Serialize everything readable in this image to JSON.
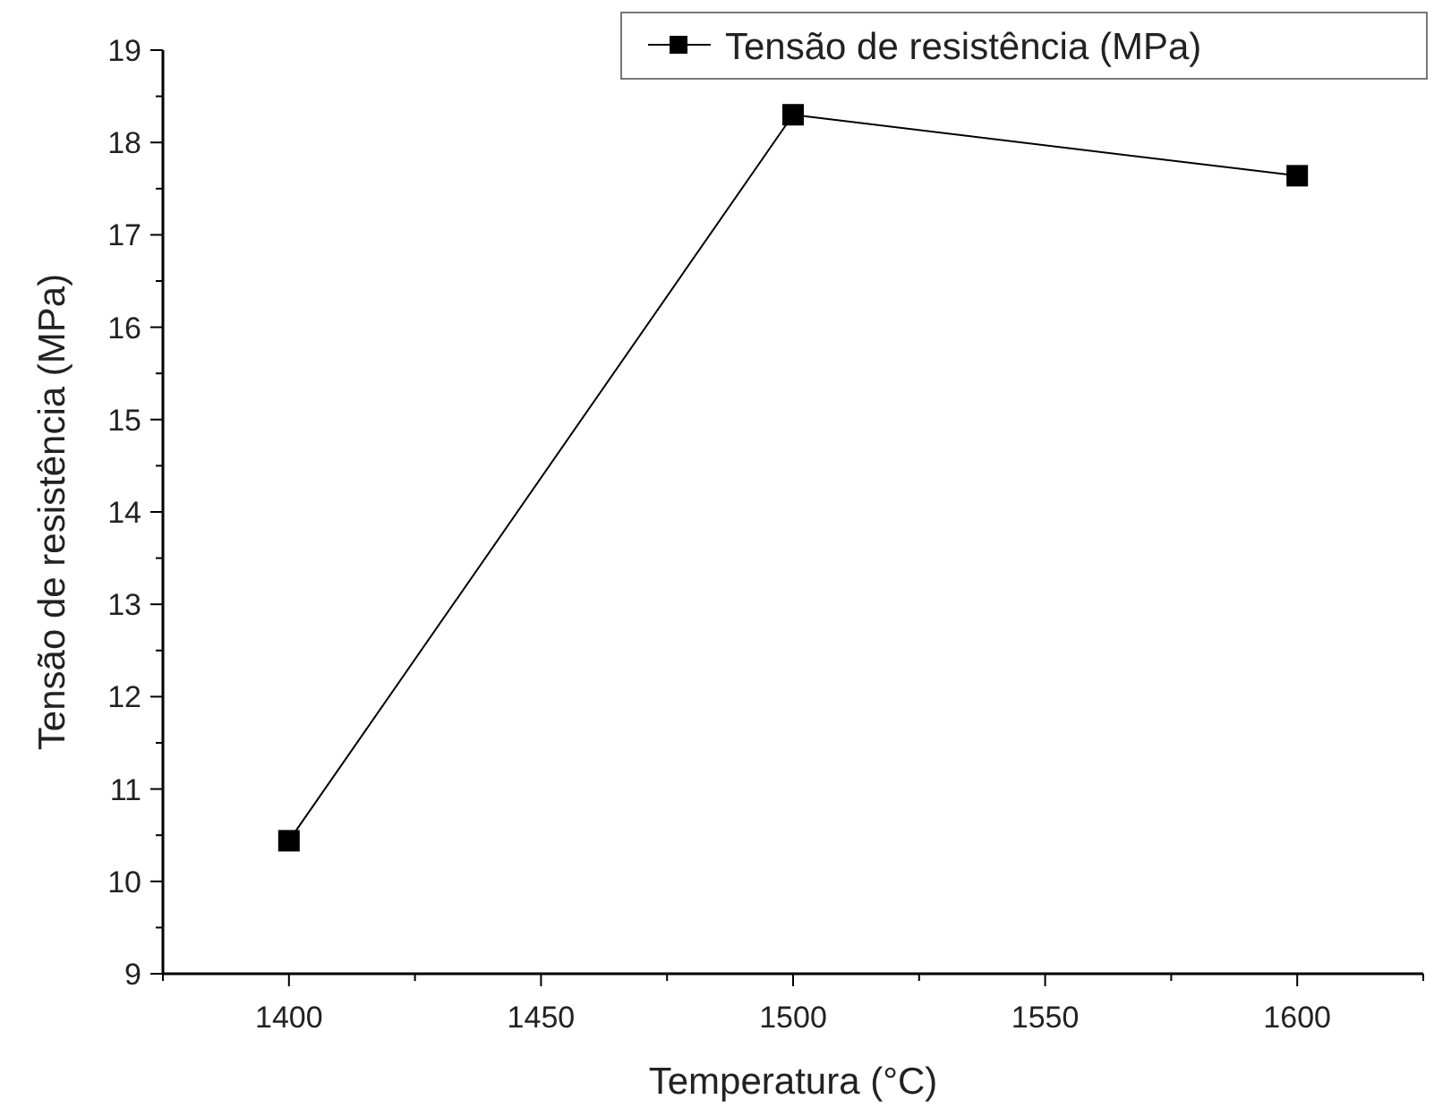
{
  "chart_data": {
    "type": "line",
    "xlabel": "Temperatura (°C)",
    "ylabel": "Tensão de resistência (MPa)",
    "x": [
      1400,
      1500,
      1600
    ],
    "series": [
      {
        "name": "Tensão de resistência (MPa)",
        "color": "#000000",
        "values": [
          10.44,
          18.3,
          17.64
        ]
      }
    ],
    "xlim": [
      1375,
      1625
    ],
    "xticks": [
      {
        "value": 1375,
        "label": null
      },
      1400,
      {
        "value": 1425,
        "label": null
      },
      1450,
      {
        "value": 1475,
        "label": null
      },
      1500,
      {
        "value": 1525,
        "label": null
      },
      1550,
      {
        "value": 1575,
        "label": null
      },
      1600,
      {
        "value": 1625,
        "label": null
      }
    ],
    "ylim": [
      9,
      19
    ],
    "yticks": [
      9,
      {
        "value": 9.5,
        "label": null
      },
      10,
      {
        "value": 10.5,
        "label": null
      },
      11,
      {
        "value": 11.5,
        "label": null
      },
      12,
      {
        "value": 12.5,
        "label": null
      },
      13,
      {
        "value": 13.5,
        "label": null
      },
      14,
      {
        "value": 14.5,
        "label": null
      },
      15,
      {
        "value": 15.5,
        "label": null
      },
      16,
      {
        "value": 16.5,
        "label": null
      },
      17,
      {
        "value": 17.5,
        "label": null
      },
      18,
      {
        "value": 18.5,
        "label": null
      },
      19
    ],
    "marker": "square",
    "line_style": "solid",
    "legend": "top right",
    "grid": false
  }
}
